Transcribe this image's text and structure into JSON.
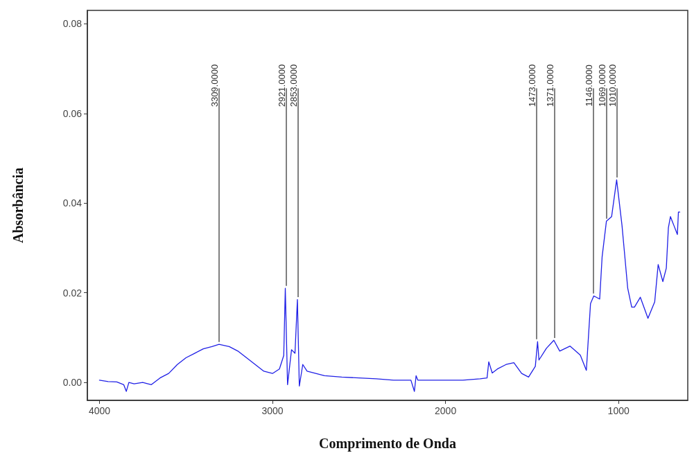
{
  "chart_data": {
    "type": "line",
    "xlabel": "Comprimento de Onda",
    "ylabel": "Absorbância",
    "xlim": [
      4070,
      600
    ],
    "ylim": [
      -0.004,
      0.083
    ],
    "xticks": [
      4000,
      3000,
      2000,
      1000
    ],
    "yticks": [
      {
        "value": 0,
        "label": "0.00"
      },
      {
        "value": 0.02,
        "label": "0.02"
      },
      {
        "value": 0.04,
        "label": "0.04"
      },
      {
        "value": 0.06,
        "label": "0.06"
      },
      {
        "value": 0.08,
        "label": "0.08"
      }
    ],
    "grid": false,
    "marker": "none",
    "line_style": "solid",
    "series": [
      {
        "color": "#1f1fe6",
        "x": [
          4000,
          3950,
          3900,
          3860,
          3845,
          3830,
          3800,
          3750,
          3720,
          3700,
          3650,
          3600,
          3550,
          3500,
          3450,
          3400,
          3350,
          3309,
          3250,
          3200,
          3150,
          3100,
          3050,
          3000,
          2960,
          2935,
          2926,
          2913,
          2890,
          2870,
          2856,
          2845,
          2825,
          2800,
          2700,
          2600,
          2500,
          2400,
          2300,
          2200,
          2180,
          2170,
          2160,
          2100,
          2000,
          1900,
          1800,
          1760,
          1750,
          1730,
          1700,
          1650,
          1605,
          1560,
          1520,
          1481,
          1468,
          1460,
          1417,
          1374,
          1340,
          1280,
          1221,
          1186,
          1162,
          1143,
          1109,
          1095,
          1070,
          1040,
          1011,
          980,
          967,
          947,
          924,
          908,
          874,
          830,
          791,
          771,
          744,
          724,
          712,
          700,
          690,
          680,
          670,
          660,
          654,
          646
        ],
        "values": [
          0.0005,
          0.0002,
          0.0001,
          -0.0005,
          -0.002,
          0.0,
          -0.0003,
          0.0,
          -0.0003,
          -0.0005,
          0.001,
          0.002,
          0.004,
          0.0055,
          0.0065,
          0.0075,
          0.008,
          0.0085,
          0.008,
          0.007,
          0.0055,
          0.004,
          0.0025,
          0.002,
          0.003,
          0.006,
          0.021,
          -0.0005,
          0.0073,
          0.0065,
          0.0185,
          -0.0008,
          0.004,
          0.0025,
          0.0015,
          0.0012,
          0.001,
          0.0008,
          0.0005,
          0.0005,
          -0.002,
          0.0015,
          0.0005,
          0.0005,
          0.0005,
          0.0005,
          0.0008,
          0.001,
          0.0046,
          0.0021,
          0.003,
          0.004,
          0.0044,
          0.002,
          0.0012,
          0.0036,
          0.0091,
          0.005,
          0.0076,
          0.0094,
          0.007,
          0.0081,
          0.0061,
          0.0027,
          0.0176,
          0.0193,
          0.0186,
          0.028,
          0.036,
          0.037,
          0.0452,
          0.035,
          0.0295,
          0.021,
          0.0168,
          0.0168,
          0.019,
          0.0143,
          0.018,
          0.0263,
          0.0225,
          0.0255,
          0.0345,
          0.037,
          0.036,
          0.035,
          0.034,
          0.033,
          0.038,
          0.038
        ]
      }
    ],
    "annotations": [
      {
        "text": "3309.0000",
        "x": 3309,
        "y": 0.0085
      },
      {
        "text": "2921.0000",
        "x": 2921,
        "y": 0.021
      },
      {
        "text": "2853.0000",
        "x": 2853,
        "y": 0.0185
      },
      {
        "text": "1473.0000",
        "x": 1473,
        "y": 0.0091
      },
      {
        "text": "1371.0000",
        "x": 1371,
        "y": 0.0094
      },
      {
        "text": "1146.0000",
        "x": 1146,
        "y": 0.0193
      },
      {
        "text": "1069.0000",
        "x": 1069,
        "y": 0.036
      },
      {
        "text": "1010.0000",
        "x": 1010,
        "y": 0.0452
      }
    ]
  }
}
